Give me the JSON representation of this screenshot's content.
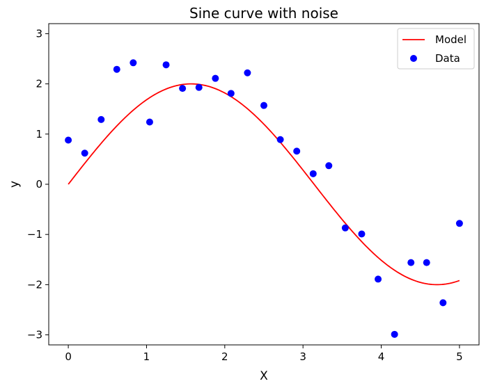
{
  "chart_data": {
    "type": "scatter",
    "title": "Sine curve with noise",
    "xlabel": "X",
    "ylabel": "y",
    "xlim": [
      -0.25,
      5.25
    ],
    "ylim": [
      -3.2,
      3.2
    ],
    "xticks": [
      0,
      1,
      2,
      3,
      4,
      5
    ],
    "yticks": [
      -3,
      -2,
      -1,
      0,
      1,
      2,
      3
    ],
    "xtick_labels": [
      "0",
      "1",
      "2",
      "3",
      "4",
      "5"
    ],
    "ytick_labels": [
      "−3",
      "−2",
      "−1",
      "0",
      "1",
      "2",
      "3"
    ],
    "grid": false,
    "legend_position": "top-right",
    "series": [
      {
        "name": "Model",
        "kind": "line",
        "color": "#ff0000",
        "function": "2*sin(x)",
        "x_range": [
          0,
          5
        ]
      },
      {
        "name": "Data",
        "kind": "scatter",
        "color": "#0000ff",
        "points": [
          [
            0.0,
            0.88
          ],
          [
            0.21,
            0.62
          ],
          [
            0.42,
            1.29
          ],
          [
            0.62,
            2.29
          ],
          [
            0.83,
            2.42
          ],
          [
            1.04,
            1.24
          ],
          [
            1.25,
            2.38
          ],
          [
            1.46,
            1.91
          ],
          [
            1.67,
            1.93
          ],
          [
            1.88,
            2.11
          ],
          [
            2.08,
            1.81
          ],
          [
            2.29,
            2.22
          ],
          [
            2.5,
            1.57
          ],
          [
            2.71,
            0.89
          ],
          [
            2.92,
            0.66
          ],
          [
            3.13,
            0.21
          ],
          [
            3.33,
            0.37
          ],
          [
            3.54,
            -0.87
          ],
          [
            3.75,
            -0.99
          ],
          [
            3.96,
            -1.89
          ],
          [
            4.17,
            -2.99
          ],
          [
            4.38,
            -1.56
          ],
          [
            4.58,
            -1.56
          ],
          [
            4.79,
            -2.36
          ],
          [
            5.0,
            -0.78
          ]
        ]
      }
    ]
  }
}
